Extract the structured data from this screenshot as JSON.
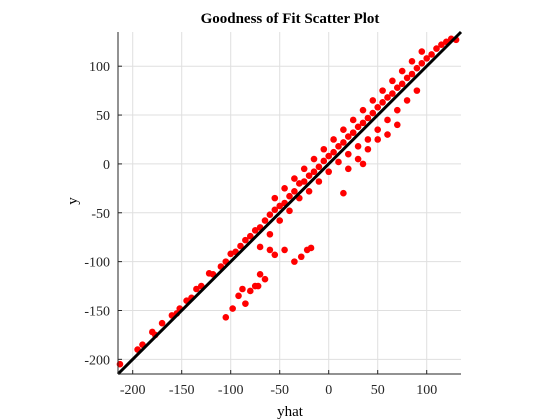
{
  "chart_data": {
    "type": "scatter",
    "title": "Goodness of Fit Scatter Plot",
    "xlabel": "yhat",
    "ylabel": "y",
    "xlim": [
      -215,
      135
    ],
    "ylim": [
      -215,
      135
    ],
    "xticks": [
      -200,
      -150,
      -100,
      -50,
      0,
      50,
      100
    ],
    "yticks": [
      -200,
      -150,
      -100,
      -50,
      0,
      50,
      100
    ],
    "xtick_labels": [
      "-200",
      "-150",
      "-100",
      "-50",
      "0",
      "50",
      "100"
    ],
    "ytick_labels": [
      "-200",
      "-150",
      "-100",
      "-50",
      "0",
      "50",
      "100"
    ],
    "grid": true,
    "marker_color": "#ff0000",
    "line_color": "#000000",
    "reference_line": {
      "x": [
        -215,
        135
      ],
      "y": [
        -215,
        135
      ]
    },
    "points": [
      {
        "x": -213,
        "y": -205
      },
      {
        "x": -195,
        "y": -190
      },
      {
        "x": -190,
        "y": -185
      },
      {
        "x": -180,
        "y": -172
      },
      {
        "x": -177,
        "y": -175
      },
      {
        "x": -170,
        "y": -163
      },
      {
        "x": -160,
        "y": -155
      },
      {
        "x": -155,
        "y": -153
      },
      {
        "x": -152,
        "y": -148
      },
      {
        "x": -145,
        "y": -140
      },
      {
        "x": -140,
        "y": -137
      },
      {
        "x": -135,
        "y": -128
      },
      {
        "x": -130,
        "y": -125
      },
      {
        "x": -122,
        "y": -112
      },
      {
        "x": -118,
        "y": -113
      },
      {
        "x": -110,
        "y": -105
      },
      {
        "x": -105,
        "y": -100
      },
      {
        "x": -100,
        "y": -92
      },
      {
        "x": -95,
        "y": -90
      },
      {
        "x": -90,
        "y": -84
      },
      {
        "x": -85,
        "y": -78
      },
      {
        "x": -80,
        "y": -74
      },
      {
        "x": -75,
        "y": -68
      },
      {
        "x": -70,
        "y": -65
      },
      {
        "x": -65,
        "y": -58
      },
      {
        "x": -60,
        "y": -52
      },
      {
        "x": -55,
        "y": -47
      },
      {
        "x": -50,
        "y": -43
      },
      {
        "x": -45,
        "y": -40
      },
      {
        "x": -40,
        "y": -33
      },
      {
        "x": -35,
        "y": -28
      },
      {
        "x": -30,
        "y": -20
      },
      {
        "x": -25,
        "y": -18
      },
      {
        "x": -20,
        "y": -12
      },
      {
        "x": -15,
        "y": -8
      },
      {
        "x": -10,
        "y": -3
      },
      {
        "x": -5,
        "y": 3
      },
      {
        "x": 0,
        "y": 8
      },
      {
        "x": 5,
        "y": 12
      },
      {
        "x": 10,
        "y": 18
      },
      {
        "x": 15,
        "y": 22
      },
      {
        "x": 20,
        "y": 28
      },
      {
        "x": 25,
        "y": 32
      },
      {
        "x": 30,
        "y": 38
      },
      {
        "x": 35,
        "y": 42
      },
      {
        "x": 40,
        "y": 47
      },
      {
        "x": 45,
        "y": 52
      },
      {
        "x": 50,
        "y": 58
      },
      {
        "x": 55,
        "y": 63
      },
      {
        "x": 60,
        "y": 68
      },
      {
        "x": 65,
        "y": 72
      },
      {
        "x": 70,
        "y": 78
      },
      {
        "x": 75,
        "y": 82
      },
      {
        "x": 80,
        "y": 88
      },
      {
        "x": 85,
        "y": 92
      },
      {
        "x": 90,
        "y": 98
      },
      {
        "x": 95,
        "y": 103
      },
      {
        "x": 100,
        "y": 108
      },
      {
        "x": 105,
        "y": 112
      },
      {
        "x": 110,
        "y": 118
      },
      {
        "x": 115,
        "y": 122
      },
      {
        "x": 120,
        "y": 125
      },
      {
        "x": 125,
        "y": 128
      },
      {
        "x": 130,
        "y": 127
      },
      {
        "x": -60,
        "y": -72
      },
      {
        "x": -50,
        "y": -58
      },
      {
        "x": -40,
        "y": -48
      },
      {
        "x": -30,
        "y": -35
      },
      {
        "x": -20,
        "y": -28
      },
      {
        "x": -10,
        "y": -18
      },
      {
        "x": 0,
        "y": -8
      },
      {
        "x": 10,
        "y": 2
      },
      {
        "x": 20,
        "y": 10
      },
      {
        "x": 30,
        "y": 18
      },
      {
        "x": 40,
        "y": 25
      },
      {
        "x": 50,
        "y": 35
      },
      {
        "x": 60,
        "y": 45
      },
      {
        "x": 70,
        "y": 55
      },
      {
        "x": 80,
        "y": 65
      },
      {
        "x": 90,
        "y": 75
      },
      {
        "x": -15,
        "y": 5
      },
      {
        "x": -5,
        "y": 15
      },
      {
        "x": 5,
        "y": 25
      },
      {
        "x": 15,
        "y": 35
      },
      {
        "x": 25,
        "y": 45
      },
      {
        "x": 35,
        "y": 55
      },
      {
        "x": 45,
        "y": 65
      },
      {
        "x": 55,
        "y": 75
      },
      {
        "x": 65,
        "y": 85
      },
      {
        "x": 75,
        "y": 95
      },
      {
        "x": 85,
        "y": 105
      },
      {
        "x": 95,
        "y": 115
      },
      {
        "x": -25,
        "y": -5
      },
      {
        "x": -35,
        "y": -15
      },
      {
        "x": -45,
        "y": -25
      },
      {
        "x": -55,
        "y": -35
      },
      {
        "x": 20,
        "y": -5
      },
      {
        "x": 30,
        "y": 5
      },
      {
        "x": 40,
        "y": 15
      },
      {
        "x": 50,
        "y": 25
      },
      {
        "x": 15,
        "y": -30
      },
      {
        "x": 35,
        "y": 0
      },
      {
        "x": 60,
        "y": 30
      },
      {
        "x": 70,
        "y": 40
      },
      {
        "x": -70,
        "y": -85
      },
      {
        "x": -60,
        "y": -88
      },
      {
        "x": -55,
        "y": -93
      },
      {
        "x": -45,
        "y": -88
      },
      {
        "x": -35,
        "y": -100
      },
      {
        "x": -28,
        "y": -95
      },
      {
        "x": -22,
        "y": -88
      },
      {
        "x": -18,
        "y": -86
      },
      {
        "x": -65,
        "y": -118
      },
      {
        "x": -75,
        "y": -125
      },
      {
        "x": -80,
        "y": -130
      },
      {
        "x": -88,
        "y": -128
      },
      {
        "x": -92,
        "y": -135
      },
      {
        "x": -85,
        "y": -143
      },
      {
        "x": -98,
        "y": -148
      },
      {
        "x": -105,
        "y": -157
      },
      {
        "x": -72,
        "y": -125
      },
      {
        "x": -70,
        "y": -113
      }
    ]
  }
}
